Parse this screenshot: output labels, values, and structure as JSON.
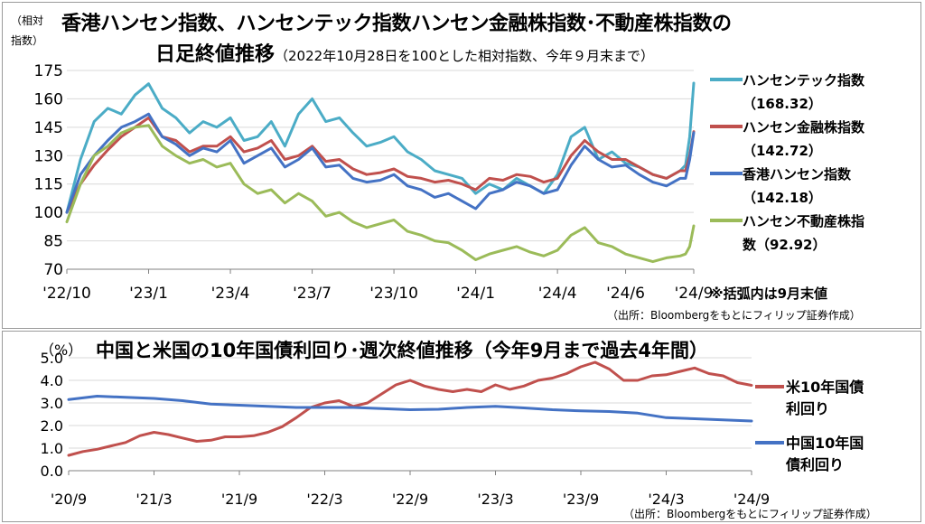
{
  "top_chart": {
    "title_line1": "香港ハンセン指数、ハンセンテック指数ハンセン金融株指数･不動産株指数の",
    "title_line2_main": "日足終値推移",
    "title_line2_sub": "（2022年10月28日を100とした相対指数、今年９月末まで）",
    "y_unit_line1": "（相対",
    "y_unit_line2": "指数）",
    "note": "※括弧内は9月末値",
    "source": "（出所：Bloombergをもとにフィリップ証券作成）"
  },
  "bottom_chart": {
    "title": "中国と米国の10年国債利回り･週次終値推移（今年9月まで過去4年間）",
    "y_unit": "（%）",
    "source": "（出所：Bloombergをもとにフィリップ証券作成）"
  },
  "chart_data": [
    {
      "type": "line",
      "y_ticks": [
        "175",
        "160",
        "145",
        "130",
        "115",
        "100",
        "85",
        "70"
      ],
      "ylim": [
        70,
        175
      ],
      "x_tick_labels": [
        "'22/10",
        "'23/1",
        "'23/4",
        "'23/7",
        "'23/10",
        "'24/1",
        "'24/4",
        "'24/6",
        "'24/9"
      ],
      "x_tick_positions": [
        0,
        3,
        6,
        9,
        12,
        15,
        18,
        20.5,
        23
      ],
      "grid": "horizontal",
      "legend_position": "right",
      "series": [
        {
          "name": "ハンセンテック指数",
          "value_label": "（168.32）",
          "color": "#4bacc6",
          "x": [
            0,
            0.5,
            1,
            1.5,
            2,
            2.5,
            3,
            3.5,
            4,
            4.5,
            5,
            5.5,
            6,
            6.5,
            7,
            7.5,
            8,
            8.5,
            9,
            9.5,
            10,
            10.5,
            11,
            11.5,
            12,
            12.5,
            13,
            13.5,
            14,
            14.5,
            15,
            15.5,
            16,
            16.5,
            17,
            17.5,
            18,
            18.5,
            19,
            19.5,
            20,
            20.5,
            21,
            21.5,
            22,
            22.5,
            22.7,
            22.85,
            23
          ],
          "values": [
            100,
            128,
            148,
            155,
            152,
            162,
            168,
            155,
            150,
            142,
            148,
            145,
            150,
            138,
            140,
            148,
            135,
            152,
            160,
            148,
            150,
            142,
            135,
            137,
            140,
            132,
            128,
            122,
            120,
            118,
            110,
            115,
            112,
            118,
            114,
            110,
            120,
            140,
            145,
            128,
            132,
            126,
            124,
            120,
            118,
            122,
            125,
            140,
            168.32
          ]
        },
        {
          "name": "ハンセン金融株指数",
          "value_label": "（142.72）",
          "color": "#c0504d",
          "x": [
            0,
            0.5,
            1,
            1.5,
            2,
            2.5,
            3,
            3.5,
            4,
            4.5,
            5,
            5.5,
            6,
            6.5,
            7,
            7.5,
            8,
            8.5,
            9,
            9.5,
            10,
            10.5,
            11,
            11.5,
            12,
            12.5,
            13,
            13.5,
            14,
            14.5,
            15,
            15.5,
            16,
            16.5,
            17,
            17.5,
            18,
            18.5,
            19,
            19.5,
            20,
            20.5,
            21,
            21.5,
            22,
            22.5,
            22.7,
            22.85,
            23
          ],
          "values": [
            100,
            115,
            125,
            133,
            140,
            145,
            150,
            140,
            138,
            132,
            135,
            135,
            140,
            132,
            134,
            138,
            128,
            130,
            135,
            127,
            128,
            123,
            120,
            121,
            123,
            119,
            118,
            116,
            117,
            115,
            112,
            118,
            117,
            120,
            119,
            116,
            118,
            130,
            138,
            132,
            128,
            128,
            124,
            120,
            118,
            122,
            122,
            130,
            142.72
          ]
        },
        {
          "name": "香港ハンセン指数",
          "value_label": "（142.18）",
          "color": "#4472c4",
          "x": [
            0,
            0.5,
            1,
            1.5,
            2,
            2.5,
            3,
            3.5,
            4,
            4.5,
            5,
            5.5,
            6,
            6.5,
            7,
            7.5,
            8,
            8.5,
            9,
            9.5,
            10,
            10.5,
            11,
            11.5,
            12,
            12.5,
            13,
            13.5,
            14,
            14.5,
            15,
            15.5,
            16,
            16.5,
            17,
            17.5,
            18,
            18.5,
            19,
            19.5,
            20,
            20.5,
            21,
            21.5,
            22,
            22.5,
            22.7,
            22.85,
            23
          ],
          "values": [
            100,
            120,
            130,
            138,
            145,
            148,
            152,
            140,
            136,
            130,
            134,
            132,
            138,
            126,
            130,
            134,
            124,
            128,
            134,
            124,
            125,
            118,
            116,
            117,
            120,
            114,
            112,
            108,
            110,
            106,
            102,
            110,
            112,
            116,
            114,
            110,
            112,
            125,
            135,
            128,
            124,
            125,
            120,
            116,
            114,
            118,
            118,
            128,
            142.18
          ]
        },
        {
          "name": "ハンセン不動産株指数",
          "value_label": "（92.92）",
          "color": "#9bbb59",
          "x": [
            0,
            0.5,
            1,
            1.5,
            2,
            2.5,
            3,
            3.5,
            4,
            4.5,
            5,
            5.5,
            6,
            6.5,
            7,
            7.5,
            8,
            8.5,
            9,
            9.5,
            10,
            10.5,
            11,
            11.5,
            12,
            12.5,
            13,
            13.5,
            14,
            14.5,
            15,
            15.5,
            16,
            16.5,
            17,
            17.5,
            18,
            18.5,
            19,
            19.5,
            20,
            20.5,
            21,
            21.5,
            22,
            22.5,
            22.7,
            22.85,
            23
          ],
          "values": [
            95,
            115,
            130,
            135,
            142,
            145,
            146,
            135,
            130,
            126,
            128,
            124,
            126,
            115,
            110,
            112,
            105,
            110,
            106,
            98,
            100,
            95,
            92,
            94,
            96,
            90,
            88,
            85,
            84,
            80,
            75,
            78,
            80,
            82,
            79,
            77,
            80,
            88,
            92,
            84,
            82,
            78,
            76,
            74,
            76,
            77,
            78,
            82,
            92.92
          ]
        }
      ]
    },
    {
      "type": "line",
      "y_ticks": [
        "5.0",
        "4.0",
        "3.0",
        "2.0",
        "1.0",
        "0.0"
      ],
      "ylim": [
        0,
        5
      ],
      "x_tick_labels": [
        "'20/9",
        "'21/3",
        "'21/9",
        "'22/3",
        "'22/9",
        "'23/3",
        "'23/9",
        "'24/3",
        "'24/9"
      ],
      "x_tick_positions": [
        0,
        6,
        12,
        18,
        24,
        30,
        36,
        42,
        48
      ],
      "grid": "horizontal",
      "legend_position": "right",
      "series": [
        {
          "name": "米10年国債利回り",
          "color": "#c0504d",
          "x": [
            0,
            1,
            2,
            3,
            4,
            5,
            6,
            7,
            8,
            9,
            10,
            11,
            12,
            13,
            14,
            15,
            16,
            17,
            18,
            19,
            20,
            21,
            22,
            23,
            24,
            25,
            26,
            27,
            28,
            29,
            30,
            31,
            32,
            33,
            34,
            35,
            36,
            37,
            38,
            39,
            40,
            41,
            42,
            43,
            44,
            45,
            46,
            47,
            48
          ],
          "values": [
            0.68,
            0.85,
            0.95,
            1.1,
            1.25,
            1.55,
            1.7,
            1.6,
            1.45,
            1.3,
            1.35,
            1.5,
            1.5,
            1.55,
            1.7,
            1.95,
            2.35,
            2.8,
            3.0,
            3.1,
            2.85,
            3.0,
            3.4,
            3.8,
            4.0,
            3.75,
            3.6,
            3.5,
            3.6,
            3.5,
            3.8,
            3.6,
            3.75,
            4.0,
            4.1,
            4.3,
            4.6,
            4.8,
            4.5,
            4.0,
            4.0,
            4.2,
            4.25,
            4.4,
            4.55,
            4.3,
            4.2,
            3.9,
            3.78
          ]
        },
        {
          "name": "中国10年国債利回り",
          "color": "#4472c4",
          "x": [
            0,
            2,
            4,
            6,
            8,
            10,
            12,
            14,
            16,
            18,
            20,
            22,
            24,
            26,
            28,
            30,
            32,
            34,
            36,
            38,
            40,
            42,
            44,
            46,
            48
          ],
          "values": [
            3.15,
            3.3,
            3.25,
            3.2,
            3.1,
            2.95,
            2.9,
            2.85,
            2.8,
            2.8,
            2.8,
            2.75,
            2.7,
            2.72,
            2.8,
            2.85,
            2.78,
            2.7,
            2.65,
            2.62,
            2.55,
            2.35,
            2.3,
            2.25,
            2.2
          ]
        }
      ]
    }
  ]
}
